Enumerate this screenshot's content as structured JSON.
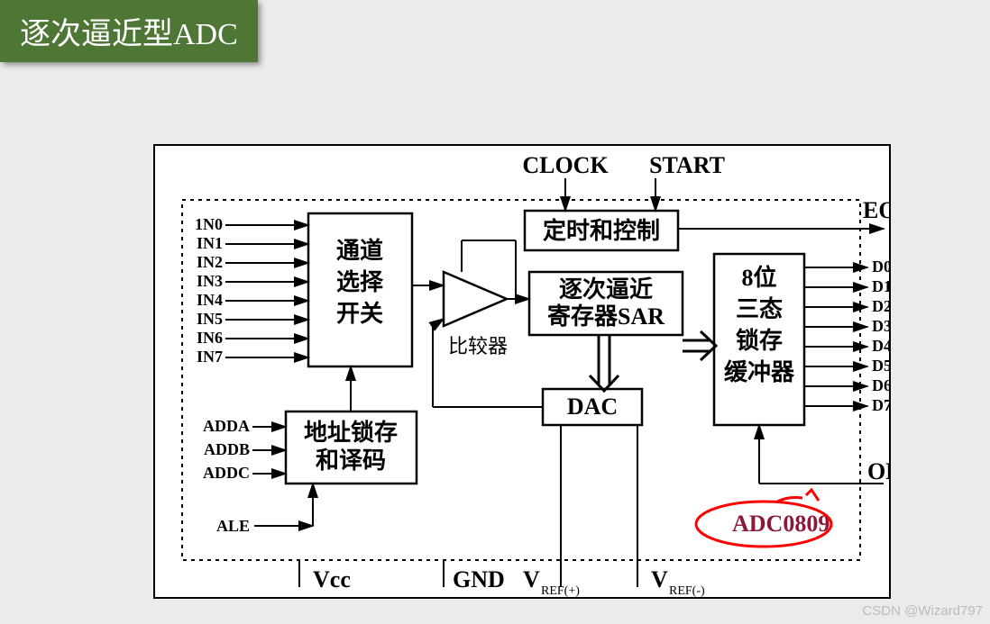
{
  "title": "逐次逼近型ADC",
  "watermark": "CSDN @Wizard797",
  "top_signals": {
    "clock": "CLOCK",
    "start": "START"
  },
  "right_signals": {
    "eoc": "EOC",
    "oe": "OE"
  },
  "blocks": {
    "channel": {
      "l1": "通道",
      "l2": "选择",
      "l3": "开关"
    },
    "timing": {
      "text": "定时和控制"
    },
    "sar": {
      "l1": "逐次逼近",
      "l2": "寄存器SAR"
    },
    "buffer": {
      "l1": "8位",
      "l2": "三态",
      "l3": "锁存",
      "l4": "缓冲器"
    },
    "addr": {
      "l1": "地址锁存",
      "l2": "和译码"
    },
    "dac": {
      "text": "DAC"
    },
    "comparator": {
      "label": "比较器"
    }
  },
  "chip_label": "ADC0809",
  "chip_label_color": "#8b1a3a",
  "annotation_color": "#ff0000",
  "analog_inputs": [
    "1N0",
    "IN1",
    "IN2",
    "IN3",
    "IN4",
    "IN5",
    "IN6",
    "IN7"
  ],
  "addr_inputs": [
    "ADDA",
    "ADDB",
    "ADDC"
  ],
  "ale": "ALE",
  "data_outputs": [
    "D0",
    "D1",
    "D2",
    "D3",
    "D4",
    "D5",
    "D6",
    "D7"
  ],
  "bottom_ports": {
    "vcc": "Vcc",
    "gnd": "GND",
    "vrefp": {
      "main": "V",
      "sub": "REF(+)"
    },
    "vrefm": {
      "main": "V",
      "sub": "REF(-)"
    }
  },
  "diagram": {
    "type": "block-diagram",
    "background_color": "#ffffff",
    "border_color": "#000000",
    "stroke_width": 2,
    "font_title_size": 34,
    "font_block_size": 26,
    "font_port_size": 18
  }
}
